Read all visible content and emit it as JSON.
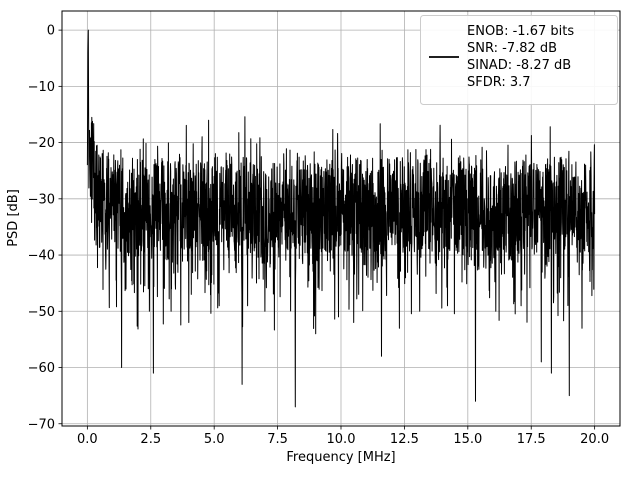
{
  "chart_data": {
    "type": "line",
    "title": "",
    "xlabel": "Frequency [MHz]",
    "ylabel": "PSD [dB]",
    "xlim": [
      -1,
      21
    ],
    "ylim": [
      -70.4,
      3.4
    ],
    "grid": true,
    "grid_color": "#b0b0b0",
    "frame_color": "#000000",
    "background_color": "#ffffff",
    "x_ticks": {
      "values": [
        0,
        2.5,
        5,
        7.5,
        10,
        12.5,
        15,
        17.5,
        20
      ],
      "labels": [
        "0.0",
        "2.5",
        "5.0",
        "7.5",
        "10.0",
        "12.5",
        "15.0",
        "17.5",
        "20.0"
      ]
    },
    "y_ticks": {
      "values": [
        0,
        -10,
        -20,
        -30,
        -40,
        -50,
        -60,
        -70
      ],
      "labels": [
        "0",
        "−10",
        "−20",
        "−30",
        "−40",
        "−50",
        "−60",
        "−70"
      ]
    },
    "legend": {
      "position": "upper right",
      "entries": [
        "ENOB: -1.67 bits",
        "SNR: -7.82 dB",
        "SINAD: -8.27 dB",
        "SFDR: 3.7"
      ]
    },
    "series": [
      {
        "name": "PSD",
        "color": "#000000",
        "description": "Dense noisy PSD floor centered near -30 dB (band roughly -22 to -48 dB), full-scale spike to 0 dB near 0 MHz with elevated noise below 0.7 MHz, and sporadic deep notches down to -67 dB",
        "peak": {
          "x": 0.035,
          "y": 0
        },
        "noise": {
          "seed": 42,
          "n_points": 2400,
          "mean": -31,
          "half_band": 8.5,
          "deep_dip_scale": 15,
          "up_spike_scale": 8,
          "dc_lift": 15,
          "dc_lift_tau": 0.25
        },
        "notches": [
          [
            1.35,
            -60
          ],
          [
            2.6,
            -61
          ],
          [
            3.3,
            -50
          ],
          [
            4.0,
            -52
          ],
          [
            5.2,
            -49
          ],
          [
            6.1,
            -63
          ],
          [
            7.0,
            -50
          ],
          [
            8.2,
            -67
          ],
          [
            9.0,
            -54
          ],
          [
            9.9,
            -51
          ],
          [
            10.5,
            -52
          ],
          [
            11.6,
            -58
          ],
          [
            12.3,
            -53
          ],
          [
            13.1,
            -50
          ],
          [
            14.2,
            -49
          ],
          [
            15.3,
            -66
          ],
          [
            16.1,
            -50
          ],
          [
            17.1,
            -49
          ],
          [
            17.9,
            -59
          ],
          [
            18.3,
            -61
          ],
          [
            19.0,
            -65
          ],
          [
            19.5,
            -53
          ]
        ]
      }
    ]
  }
}
